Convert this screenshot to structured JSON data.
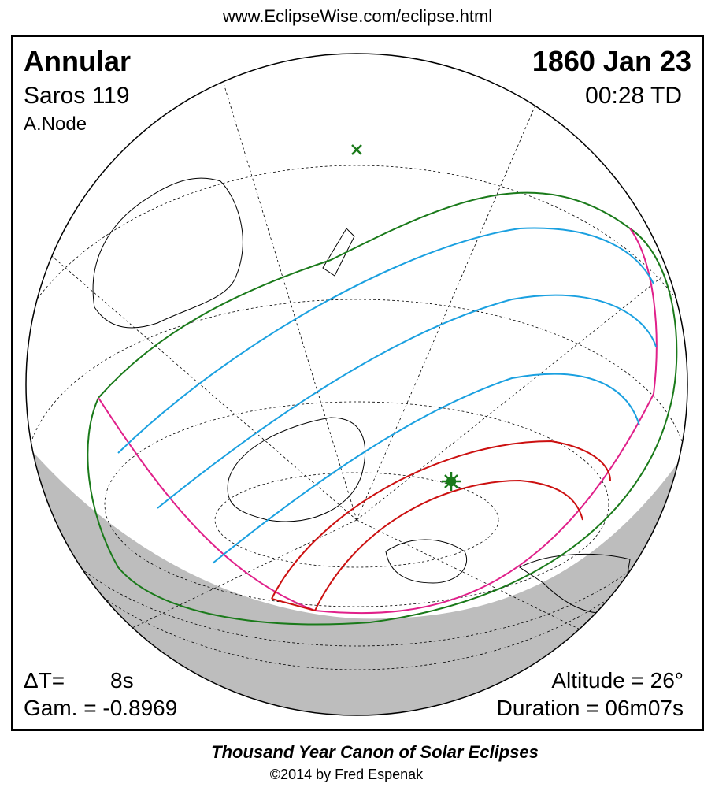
{
  "header": {
    "url": "www.EclipseWise.com/eclipse.html"
  },
  "eclipse": {
    "type": "Annular",
    "date": "1860 Jan 23",
    "saros": "Saros 119",
    "time": "00:28 TD",
    "node": "A.Node"
  },
  "parameters": {
    "delta_t_label": "ΔT=",
    "delta_t": "8s",
    "gamma": "Gam. = -0.8969",
    "altitude": "Altitude = 26°",
    "duration": "Duration = 06m07s"
  },
  "footer": {
    "title": "Thousand Year Canon of Solar Eclipses",
    "copyright": "©2014 by Fred Espenak"
  }
}
